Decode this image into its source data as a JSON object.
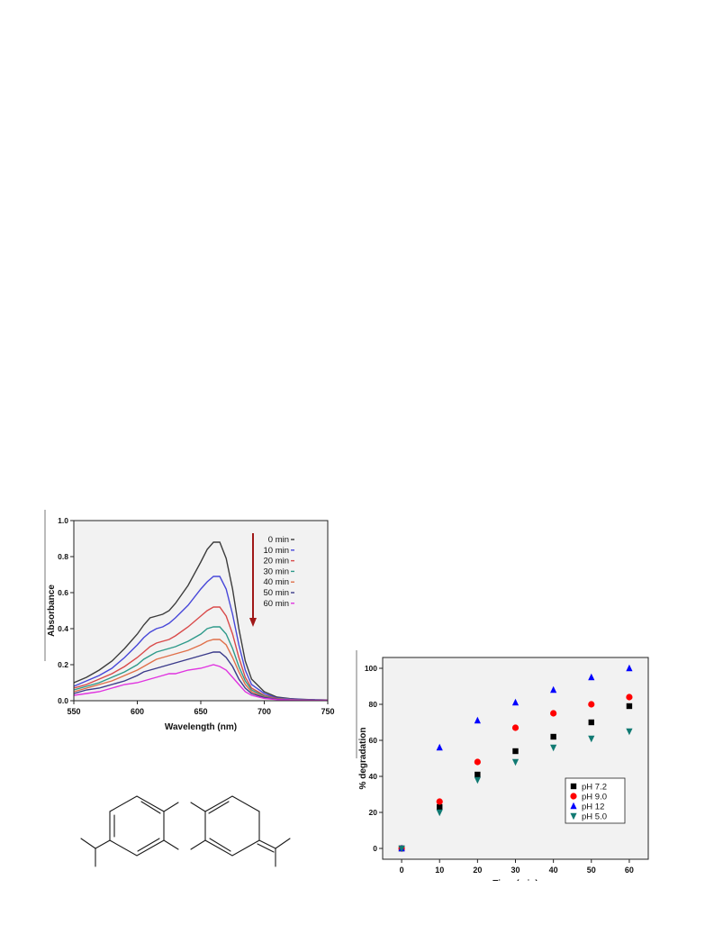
{
  "charts": {
    "chart_data": [
      {
        "type": "line",
        "xlabel": "Wavelength (nm)",
        "ylabel": "Absorbance",
        "xlim": [
          550,
          750
        ],
        "ylim": [
          0,
          1.0
        ],
        "x_ticks": [
          "550",
          "600",
          "650",
          "700",
          "750"
        ],
        "y_ticks": [
          "0.0",
          "0.2",
          "0.4",
          "0.6",
          "0.8",
          "1.0"
        ],
        "grid": false,
        "legend_position": "top-right",
        "x": [
          550,
          560,
          570,
          580,
          590,
          600,
          605,
          610,
          615,
          620,
          625,
          630,
          640,
          650,
          655,
          660,
          665,
          670,
          675,
          680,
          685,
          690,
          700,
          710,
          720,
          730,
          740,
          750
        ],
        "series": [
          {
            "name": "0 min",
            "color": "#3c3c3c",
            "values": [
              0.1,
              0.13,
              0.17,
              0.22,
              0.29,
              0.37,
              0.42,
              0.46,
              0.47,
              0.48,
              0.5,
              0.54,
              0.64,
              0.77,
              0.84,
              0.88,
              0.88,
              0.79,
              0.62,
              0.4,
              0.22,
              0.12,
              0.05,
              0.02,
              0.012,
              0.008,
              0.005,
              0.004
            ]
          },
          {
            "name": "10 min",
            "color": "#4747d9",
            "values": [
              0.08,
              0.11,
              0.14,
              0.18,
              0.24,
              0.31,
              0.35,
              0.38,
              0.4,
              0.41,
              0.43,
              0.46,
              0.53,
              0.62,
              0.66,
              0.69,
              0.69,
              0.62,
              0.48,
              0.31,
              0.17,
              0.09,
              0.04,
              0.015,
              0.01,
              0.007,
              0.005,
              0.004
            ]
          },
          {
            "name": "20 min",
            "color": "#d94a4a",
            "values": [
              0.07,
              0.09,
              0.12,
              0.15,
              0.19,
              0.24,
              0.27,
              0.3,
              0.32,
              0.33,
              0.34,
              0.36,
              0.41,
              0.47,
              0.5,
              0.52,
              0.52,
              0.47,
              0.37,
              0.24,
              0.13,
              0.07,
              0.03,
              0.012,
              0.008,
              0.006,
              0.004,
              0.003
            ]
          },
          {
            "name": "30 min",
            "color": "#2e9a8a",
            "values": [
              0.06,
              0.08,
              0.1,
              0.13,
              0.16,
              0.2,
              0.23,
              0.25,
              0.27,
              0.28,
              0.29,
              0.3,
              0.33,
              0.37,
              0.4,
              0.41,
              0.41,
              0.37,
              0.29,
              0.19,
              0.11,
              0.06,
              0.025,
              0.01,
              0.007,
              0.005,
              0.004,
              0.003
            ]
          },
          {
            "name": "40 min",
            "color": "#e0704a",
            "values": [
              0.05,
              0.07,
              0.09,
              0.11,
              0.14,
              0.17,
              0.19,
              0.21,
              0.23,
              0.24,
              0.25,
              0.26,
              0.28,
              0.31,
              0.33,
              0.34,
              0.34,
              0.31,
              0.24,
              0.16,
              0.09,
              0.05,
              0.02,
              0.009,
              0.006,
              0.004,
              0.003,
              0.003
            ]
          },
          {
            "name": "50 min",
            "color": "#3a3a8a",
            "values": [
              0.04,
              0.06,
              0.07,
              0.09,
              0.11,
              0.14,
              0.16,
              0.17,
              0.18,
              0.19,
              0.2,
              0.21,
              0.23,
              0.25,
              0.26,
              0.27,
              0.27,
              0.24,
              0.19,
              0.12,
              0.07,
              0.04,
              0.018,
              0.008,
              0.005,
              0.004,
              0.003,
              0.002
            ]
          },
          {
            "name": "60 min",
            "color": "#e033e0",
            "values": [
              0.03,
              0.04,
              0.05,
              0.07,
              0.09,
              0.1,
              0.11,
              0.12,
              0.13,
              0.14,
              0.15,
              0.15,
              0.17,
              0.18,
              0.19,
              0.2,
              0.19,
              0.17,
              0.13,
              0.09,
              0.05,
              0.03,
              0.013,
              0.006,
              0.004,
              0.003,
              0.002,
              0.002
            ]
          }
        ],
        "annotation": {
          "type": "arrow",
          "direction": "down",
          "color": "#a01818"
        }
      },
      {
        "type": "scatter",
        "xlabel": "Time (min)",
        "ylabel": "% degradation",
        "xlim": [
          -5,
          65
        ],
        "ylim": [
          -6,
          106
        ],
        "x_ticks": [
          "0",
          "10",
          "20",
          "30",
          "40",
          "50",
          "60"
        ],
        "y_ticks": [
          "0",
          "20",
          "40",
          "60",
          "80",
          "100"
        ],
        "grid": false,
        "legend_position": "bottom-right",
        "x": [
          0,
          10,
          20,
          30,
          40,
          50,
          60
        ],
        "series": [
          {
            "name": "pH 7.2",
            "marker": "square",
            "color": "#000000",
            "values": [
              0,
              23,
              41,
              54,
              62,
              70,
              79
            ]
          },
          {
            "name": "pH 9.0",
            "marker": "circle",
            "color": "#ff0000",
            "values": [
              0,
              26,
              48,
              67,
              75,
              80,
              84
            ]
          },
          {
            "name": "pH 12",
            "marker": "triangle-up",
            "color": "#0000ff",
            "values": [
              0,
              56,
              71,
              81,
              88,
              95,
              100
            ]
          },
          {
            "name": "pH 5.0",
            "marker": "triangle-down",
            "color": "#117a73",
            "values": [
              0,
              20,
              38,
              48,
              56,
              61,
              65
            ]
          }
        ]
      }
    ]
  },
  "figure": {
    "background": "#ffffff",
    "spectra_plot_background": "#f2f2f2",
    "degradation_plot_background": "#f2f2f2",
    "structure_color": "#1a1a1a"
  }
}
